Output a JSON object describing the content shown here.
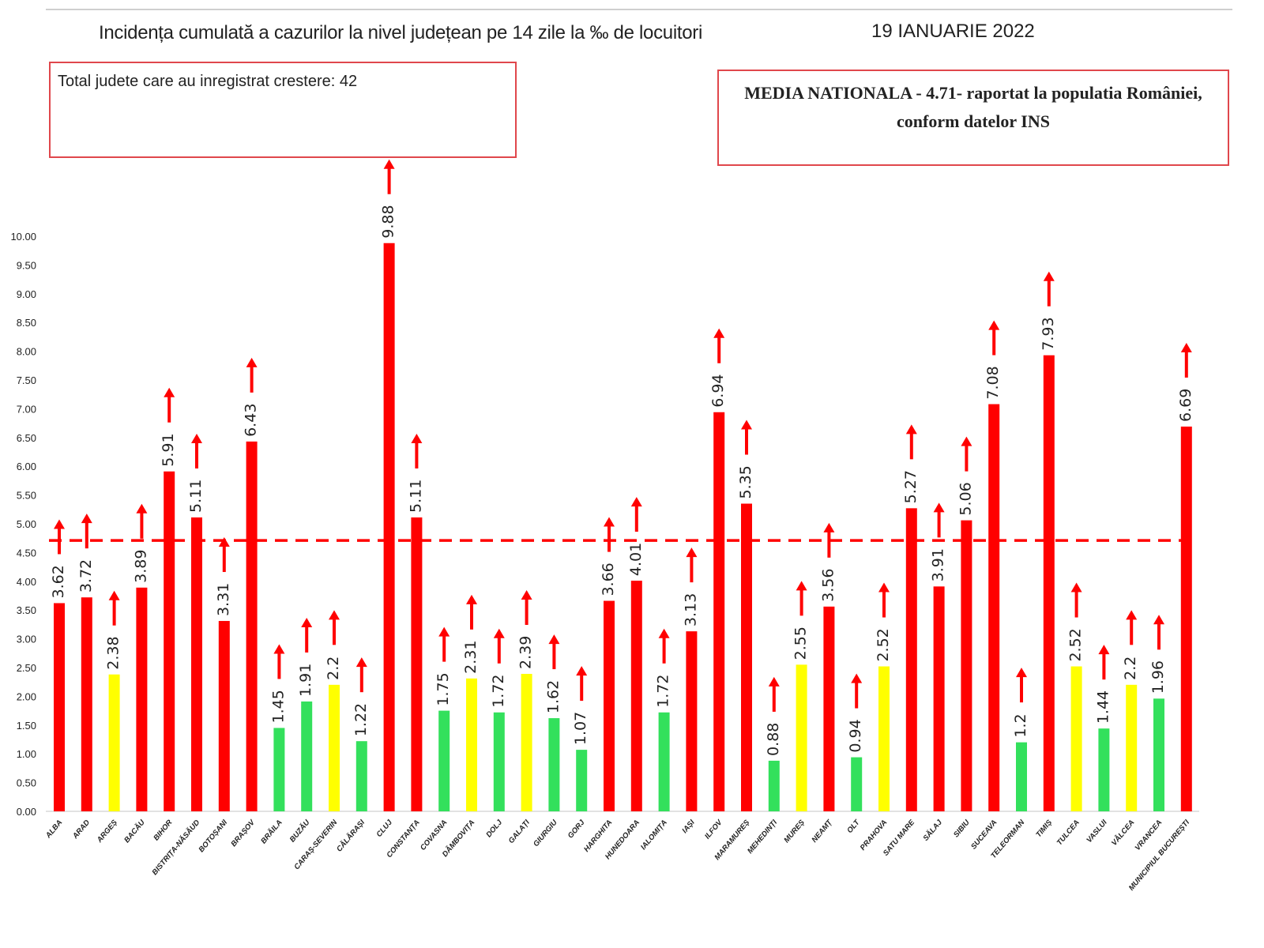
{
  "header": {
    "title": "Incidența cumulată a cazurilor la nivel județean pe 14 zile la ‰ de locuitori",
    "date": "19 IANUARIE 2022"
  },
  "info_box_left": {
    "text": "Total judete care au inregistrat crestere: 42"
  },
  "info_box_right": {
    "line1": "MEDIA NATIONALA - 4.71-  raportat la populatia României,",
    "line2": "conform datelor INS"
  },
  "colors": {
    "red": "#ff0000",
    "yellow": "#ffff00",
    "green": "#33e05c",
    "arrow": "#ff0000",
    "average_line": "#ff0000",
    "box_border": "#e0474c"
  },
  "chart_data": {
    "type": "bar",
    "title": "Incidența cumulată a cazurilor la nivel județean pe 14 zile la ‰ de locuitori",
    "xlabel": "",
    "ylabel": "",
    "ylim": [
      0,
      10
    ],
    "y_ticks": [
      "0.00",
      "0.50",
      "1.00",
      "1.50",
      "2.00",
      "2.50",
      "3.00",
      "3.50",
      "4.00",
      "4.50",
      "5.00",
      "5.50",
      "6.00",
      "6.50",
      "7.00",
      "7.50",
      "8.00",
      "8.50",
      "9.00",
      "9.50",
      "10.00"
    ],
    "average_line": 4.71,
    "all_bars_have_up_arrow": true,
    "categories": [
      "ALBA",
      "ARAD",
      "ARGEȘ",
      "BACĂU",
      "BIHOR",
      "BISTRIȚA-NĂSĂUD",
      "BOTOȘANI",
      "BRAȘOV",
      "BRĂILA",
      "BUZĂU",
      "CARAȘ-SEVERIN",
      "CĂLĂRAȘI",
      "CLUJ",
      "CONSTANȚA",
      "COVASNA",
      "DÂMBOVIȚA",
      "DOLJ",
      "GALAȚI",
      "GIURGIU",
      "GORJ",
      "HARGHITA",
      "HUNEDOARA",
      "IALOMIȚA",
      "IAȘI",
      "ILFOV",
      "MARAMUREȘ",
      "MEHEDINȚI",
      "MUREȘ",
      "NEAMȚ",
      "OLT",
      "PRAHOVA",
      "SATU MARE",
      "SĂLAJ",
      "SIBIU",
      "SUCEAVA",
      "TELEORMAN",
      "TIMIȘ",
      "TULCEA",
      "VASLUI",
      "VÂLCEA",
      "VRANCEA",
      "MUNICIPIUL BUCUREȘTI"
    ],
    "values": [
      3.62,
      3.72,
      2.38,
      3.89,
      5.91,
      5.11,
      3.31,
      6.43,
      1.45,
      1.91,
      2.2,
      1.22,
      9.88,
      5.11,
      1.75,
      2.31,
      1.72,
      2.39,
      1.62,
      1.07,
      3.66,
      4.01,
      1.72,
      3.13,
      6.94,
      5.35,
      0.88,
      2.55,
      3.56,
      0.94,
      2.52,
      5.27,
      3.91,
      5.06,
      7.08,
      1.2,
      7.93,
      2.52,
      1.44,
      2.2,
      1.96,
      6.69
    ],
    "value_labels": [
      "3.62",
      "3.72",
      "2.38",
      "3.89",
      "5.91",
      "5.11",
      "3.31",
      "6.43",
      "1.45",
      "1.91",
      "2.2",
      "1.22",
      "9.88",
      "5.11",
      "1.75",
      "2.31",
      "1.72",
      "2.39",
      "1.62",
      "1.07",
      "3.66",
      "4.01",
      "1.72",
      "3.13",
      "6.94",
      "5.35",
      "0.88",
      "2.55",
      "3.56",
      "0.94",
      "2.52",
      "5.27",
      "3.91",
      "5.06",
      "7.08",
      "1.2",
      "7.93",
      "2.52",
      "1.44",
      "2.2",
      "1.96",
      "6.69"
    ],
    "bar_colors": [
      "red",
      "red",
      "yellow",
      "red",
      "red",
      "red",
      "red",
      "red",
      "green",
      "green",
      "yellow",
      "green",
      "red",
      "red",
      "green",
      "yellow",
      "green",
      "yellow",
      "green",
      "green",
      "red",
      "red",
      "green",
      "red",
      "red",
      "red",
      "green",
      "yellow",
      "red",
      "green",
      "yellow",
      "red",
      "red",
      "red",
      "red",
      "green",
      "red",
      "yellow",
      "green",
      "yellow",
      "green",
      "red"
    ]
  }
}
